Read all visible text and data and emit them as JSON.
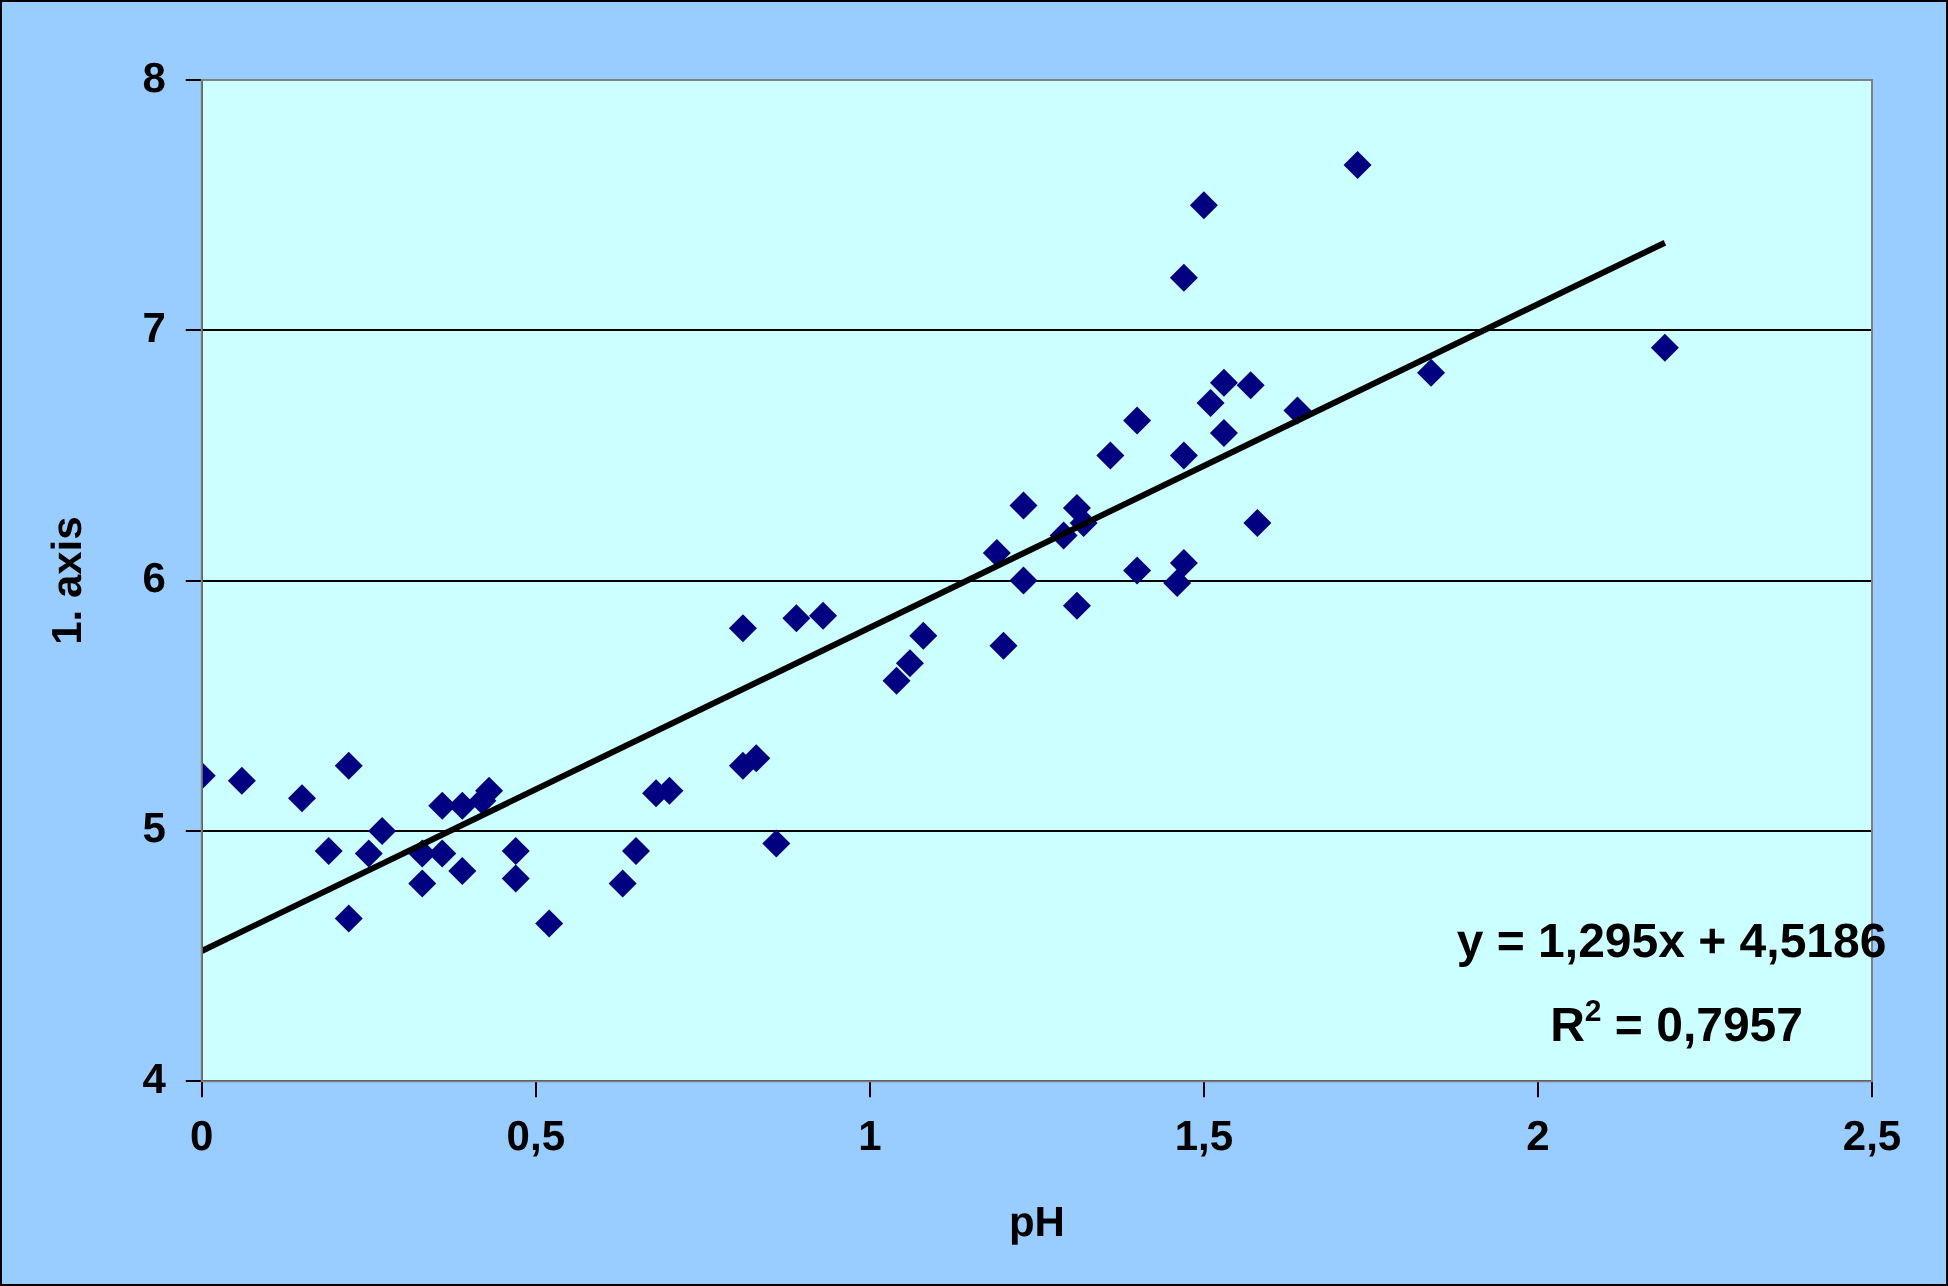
{
  "chart_data": {
    "type": "scatter",
    "xlabel": "pH",
    "ylabel": "1. axis",
    "annotations": [
      "y = 1,295x + 4,5186",
      "R$^{2}$ = 0,7957"
    ],
    "xlim": [
      0,
      2.5
    ],
    "ylim": [
      4,
      8
    ],
    "xticks": [
      0,
      {
        "value": 0.5,
        "label": "0,5"
      },
      1,
      {
        "value": 1.5,
        "label": "1,5"
      },
      2,
      {
        "value": 2.5,
        "label": "2,5"
      }
    ],
    "yticks": [
      4,
      5,
      6,
      7,
      8
    ],
    "grid": "y",
    "legend": false,
    "marker": "diamond",
    "series": [
      {
        "color": "#000080",
        "x": [
          0,
          0.06,
          0.15,
          0.19,
          0.22,
          0.22,
          0.25,
          0.27,
          0.33,
          0.33,
          0.36,
          0.36,
          0.39,
          0.39,
          0.42,
          0.43,
          0.47,
          0.47,
          0.52,
          0.63,
          0.65,
          0.68,
          0.7,
          0.81,
          0.81,
          0.83,
          0.86,
          0.89,
          0.93,
          1.04,
          1.06,
          1.08,
          1.2,
          1.19,
          1.23,
          1.23,
          1.29,
          1.31,
          1.31,
          1.32,
          1.36,
          1.4,
          1.4,
          1.46,
          1.47,
          1.47,
          1.47,
          1.5,
          1.51,
          1.53,
          1.53,
          1.57,
          1.58,
          1.64,
          1.73,
          1.84,
          2.19
        ],
        "values": [
          5.22,
          5.2,
          5.13,
          4.92,
          5.26,
          4.65,
          4.91,
          5.0,
          4.91,
          4.79,
          5.1,
          4.91,
          4.84,
          5.1,
          5.12,
          5.16,
          4.92,
          4.81,
          4.63,
          4.79,
          4.92,
          5.15,
          5.16,
          5.81,
          5.26,
          5.29,
          4.95,
          5.85,
          5.86,
          5.6,
          5.67,
          5.78,
          5.74,
          6.11,
          6.3,
          6.0,
          6.18,
          6.29,
          5.9,
          6.23,
          6.5,
          6.64,
          6.04,
          5.99,
          6.07,
          6.5,
          7.21,
          7.5,
          6.71,
          6.79,
          6.59,
          6.78,
          6.23,
          6.68,
          7.66,
          6.83,
          6.93
        ]
      },
      {
        "type": "line",
        "color": "#000000",
        "marker": "none",
        "x": [
          0,
          2.19
        ],
        "values": [
          4.52,
          7.35
        ]
      }
    ]
  }
}
